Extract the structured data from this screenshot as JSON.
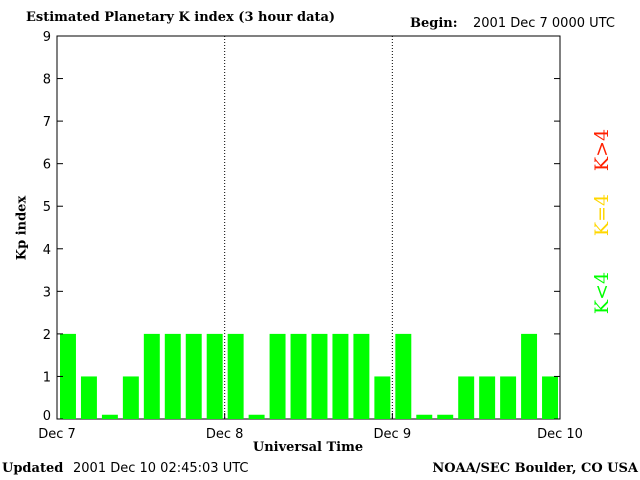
{
  "header": {
    "title": "Estimated Planetary K index (3 hour data)",
    "begin_label": "Begin:",
    "begin_value": "2001 Dec 7 0000 UTC"
  },
  "footer": {
    "updated_label": "Updated",
    "updated_value": "2001 Dec 10 02:45:03 UTC",
    "credit": "NOAA/SEC Boulder, CO USA"
  },
  "legend": [
    {
      "label": "K<4",
      "color": "#00ff00"
    },
    {
      "label": "K=4",
      "color": "#ffd700"
    },
    {
      "label": "K>4",
      "color": "#ff2000"
    }
  ],
  "chart_data": {
    "type": "bar",
    "title": "Estimated Planetary K index (3 hour data)",
    "xlabel": "Universal Time",
    "ylabel": "Kp index",
    "ylim": [
      0,
      9
    ],
    "yticks": [
      0,
      1,
      2,
      3,
      4,
      5,
      6,
      7,
      8,
      9
    ],
    "xticks": [
      "Dec 7",
      "Dec 8",
      "Dec 9",
      "Dec 10"
    ],
    "day_dividers": true,
    "bar_color": "#00ff00",
    "values": [
      2,
      1,
      0.1,
      1,
      2,
      2,
      2,
      2,
      2,
      0.1,
      2,
      2,
      2,
      2,
      2,
      1,
      2,
      0.1,
      0.1,
      1,
      1,
      1,
      2,
      1
    ]
  }
}
